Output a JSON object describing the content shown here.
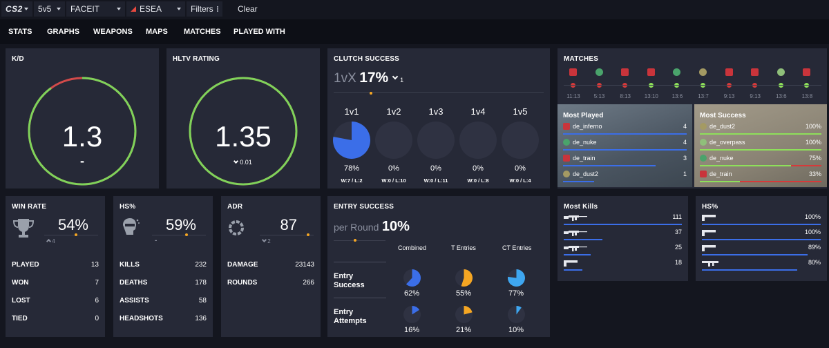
{
  "topbar": {
    "game": "CS2",
    "mode": "5v5",
    "platform": "FACEIT",
    "league": "ESEA",
    "filters": "Filters",
    "clear": "Clear"
  },
  "nav": [
    "STATS",
    "GRAPHS",
    "WEAPONS",
    "MAPS",
    "MATCHES",
    "PLAYED WITH"
  ],
  "kd": {
    "title": "K/D",
    "value": "1.3",
    "change": "-",
    "fill": 0.9
  },
  "hltv": {
    "title": "HLTV RATING",
    "value": "1.35",
    "change": "0.01",
    "fill": 1.0
  },
  "clutch": {
    "title": "CLUTCH SUCCESS",
    "prefix": "1vX",
    "percent": "17%",
    "change": "1",
    "columns": [
      {
        "label": "1v1",
        "percent": "78%",
        "wl": "W:7 / L:2",
        "fraction": 0.78
      },
      {
        "label": "1v2",
        "percent": "0%",
        "wl": "W:0 / L:10",
        "fraction": 0
      },
      {
        "label": "1v3",
        "percent": "0%",
        "wl": "W:0 / L:11",
        "fraction": 0
      },
      {
        "label": "1v4",
        "percent": "0%",
        "wl": "W:0 / L:8",
        "fraction": 0
      },
      {
        "label": "1v5",
        "percent": "0%",
        "wl": "W:0 / L:4",
        "fraction": 0
      }
    ]
  },
  "matches": {
    "title": "MATCHES",
    "items": [
      {
        "score": "11:13",
        "result": "loss",
        "map": "inferno"
      },
      {
        "score": "5:13",
        "result": "loss",
        "map": "nuke"
      },
      {
        "score": "8:13",
        "result": "loss",
        "map": "train"
      },
      {
        "score": "13:10",
        "result": "win",
        "map": "train"
      },
      {
        "score": "13:6",
        "result": "win",
        "map": "nuke"
      },
      {
        "score": "13:7",
        "result": "win",
        "map": "dust2"
      },
      {
        "score": "9:13",
        "result": "loss",
        "map": "train"
      },
      {
        "score": "9:13",
        "result": "loss",
        "map": "train"
      },
      {
        "score": "13:6",
        "result": "win",
        "map": "overpass"
      },
      {
        "score": "13:8",
        "result": "win",
        "map": "train"
      }
    ],
    "colors": {
      "win": "#8ee05a",
      "loss": "#d63a3a"
    }
  },
  "most_played": {
    "title": "Most Played",
    "rows": [
      {
        "map": "de_inferno",
        "count": "4",
        "fraction": 1.0
      },
      {
        "map": "de_nuke",
        "count": "4",
        "fraction": 1.0
      },
      {
        "map": "de_train",
        "count": "3",
        "fraction": 0.75
      },
      {
        "map": "de_dust2",
        "count": "1",
        "fraction": 0.25
      }
    ]
  },
  "most_success": {
    "title": "Most Success",
    "rows": [
      {
        "map": "de_dust2",
        "value": "100%",
        "fraction": 1.0
      },
      {
        "map": "de_overpass",
        "value": "100%",
        "fraction": 1.0
      },
      {
        "map": "de_nuke",
        "value": "75%",
        "fraction": 0.75
      },
      {
        "map": "de_train",
        "value": "33%",
        "fraction": 0.33
      }
    ]
  },
  "win_rate": {
    "title": "WIN RATE",
    "value": "54%",
    "change": "4",
    "icon": "trophy-icon",
    "stats": [
      {
        "label": "PLAYED",
        "value": "13"
      },
      {
        "label": "WON",
        "value": "7"
      },
      {
        "label": "LOST",
        "value": "6"
      },
      {
        "label": "TIED",
        "value": "0"
      }
    ]
  },
  "hs": {
    "title": "HS%",
    "value": "59%",
    "change": "-",
    "icon": "headshot-icon",
    "stats": [
      {
        "label": "KILLS",
        "value": "232"
      },
      {
        "label": "DEATHS",
        "value": "178"
      },
      {
        "label": "ASSISTS",
        "value": "58"
      },
      {
        "label": "HEADSHOTS",
        "value": "136"
      }
    ]
  },
  "adr": {
    "title": "ADR",
    "value": "87",
    "change": "2",
    "icon": "damage-ring-icon",
    "stats": [
      {
        "label": "DAMAGE",
        "value": "23143"
      },
      {
        "label": "ROUNDS",
        "value": "266"
      }
    ]
  },
  "entry": {
    "title": "ENTRY SUCCESS",
    "prefix": "per Round",
    "value": "10%",
    "columns": [
      "Combined",
      "T Entries",
      "CT Entries"
    ],
    "rows": [
      {
        "label": "Entry Success",
        "values": [
          "62%",
          "55%",
          "77%"
        ],
        "fractions": [
          0.62,
          0.55,
          0.77
        ]
      },
      {
        "label": "Entry Attempts",
        "values": [
          "16%",
          "21%",
          "10%"
        ],
        "fractions": [
          0.16,
          0.21,
          0.1
        ]
      }
    ],
    "colors": [
      "#3b6ee8",
      "#f5a623",
      "#3ea6f0"
    ]
  },
  "most_kills": {
    "title": "Most Kills",
    "rows": [
      {
        "weapon": "ak47-icon",
        "value": "111",
        "fraction": 1.0
      },
      {
        "weapon": "m4a4-icon",
        "value": "37",
        "fraction": 0.33
      },
      {
        "weapon": "m4a1s-icon",
        "value": "25",
        "fraction": 0.23
      },
      {
        "weapon": "deagle-icon",
        "value": "18",
        "fraction": 0.16
      }
    ]
  },
  "weapon_hs": {
    "title": "HS%",
    "rows": [
      {
        "weapon": "deagle-icon",
        "value": "100%",
        "fraction": 1.0
      },
      {
        "weapon": "glock-icon",
        "value": "100%",
        "fraction": 1.0
      },
      {
        "weapon": "usp-icon",
        "value": "89%",
        "fraction": 0.89
      },
      {
        "weapon": "mp9-icon",
        "value": "80%",
        "fraction": 0.8
      }
    ]
  }
}
